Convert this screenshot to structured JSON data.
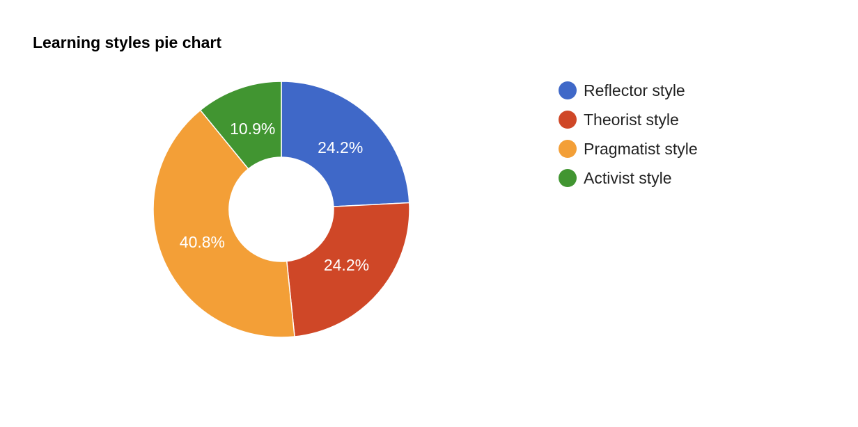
{
  "chart_data": {
    "type": "pie",
    "title": "Learning styles pie chart",
    "donut": true,
    "legend_position": "right",
    "categories": [
      "Reflector style",
      "Theorist style",
      "Pragmatist style",
      "Activist style"
    ],
    "values": [
      24.2,
      24.2,
      40.8,
      10.9
    ],
    "labels": [
      "24.2%",
      "24.2%",
      "40.8%",
      "10.9%"
    ],
    "colors": [
      "#3f68c8",
      "#cf4727",
      "#f39f37",
      "#419531"
    ]
  }
}
